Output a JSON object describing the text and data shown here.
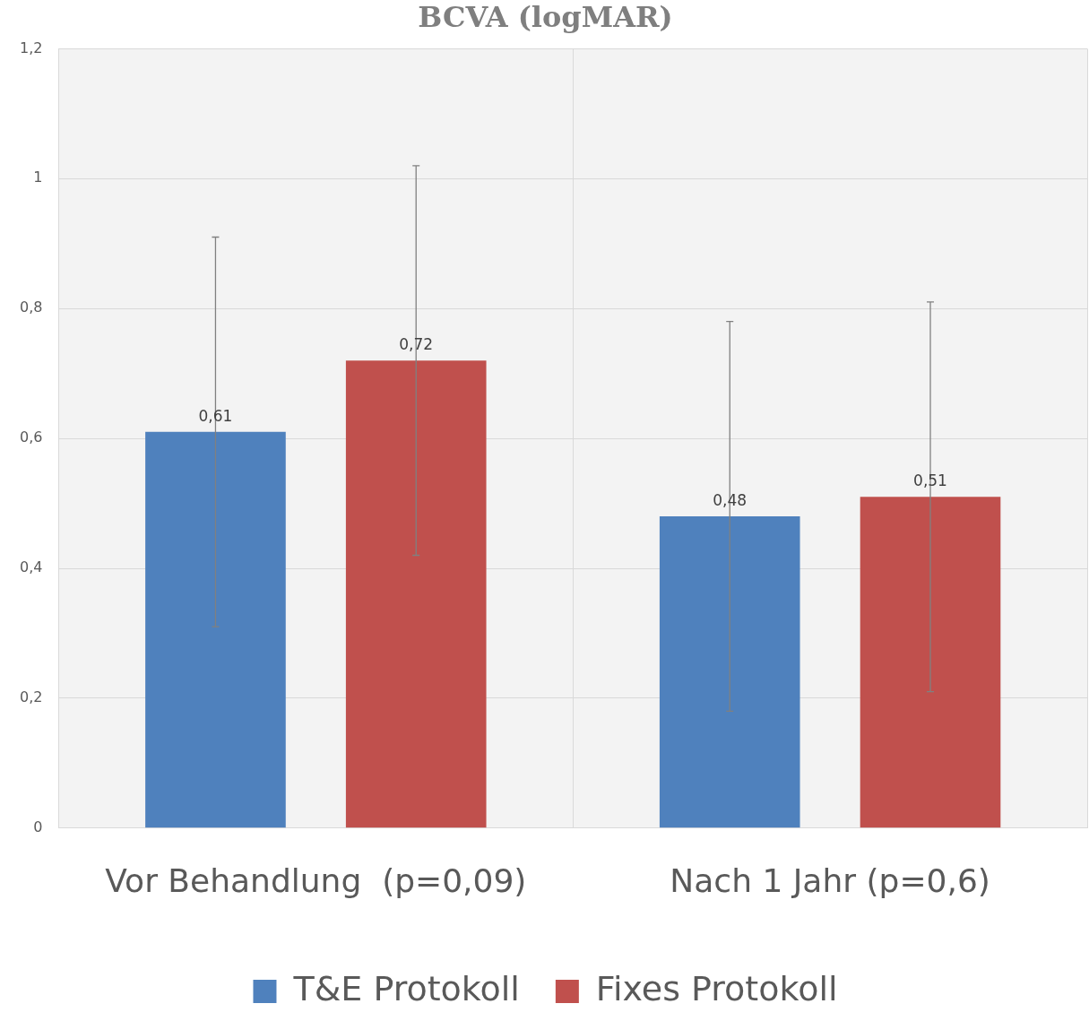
{
  "chart_data": {
    "type": "bar",
    "title": "BCVA (logMAR)",
    "categories": [
      "Vor Behandlung  (p=0,09)",
      "Nach 1 Jahr (p=0,6)"
    ],
    "series": [
      {
        "name": "T&E Protokoll",
        "color": "#4f81bd",
        "values": [
          0.61,
          0.48
        ],
        "value_labels": [
          "0,61",
          "0,48"
        ],
        "errors": [
          0.3,
          0.3
        ]
      },
      {
        "name": "Fixes Protokoll",
        "color": "#c0504d",
        "values": [
          0.72,
          0.51
        ],
        "value_labels": [
          "0,72",
          "0,51"
        ],
        "errors": [
          0.3,
          0.3
        ]
      }
    ],
    "ylim": [
      0,
      1.2
    ],
    "yticks": [
      {
        "value": 0,
        "label": "0"
      },
      {
        "value": 0.2,
        "label": "0,2"
      },
      {
        "value": 0.4,
        "label": "0,4"
      },
      {
        "value": 0.6,
        "label": "0,6"
      },
      {
        "value": 0.8,
        "label": "0,8"
      },
      {
        "value": 1,
        "label": "1"
      },
      {
        "value": 1.2,
        "label": "1,2"
      }
    ],
    "grid": true,
    "legend": "bottom"
  }
}
